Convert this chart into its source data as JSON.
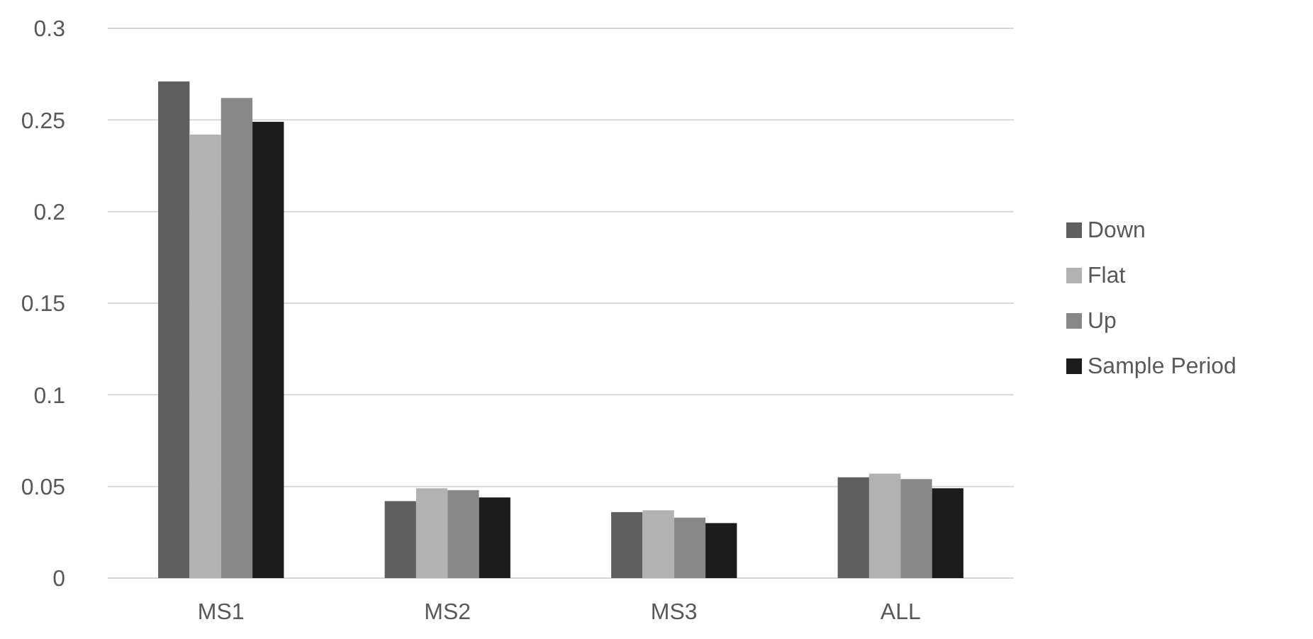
{
  "chart_data": {
    "type": "bar",
    "categories": [
      "MS1",
      "MS2",
      "MS3",
      "ALL"
    ],
    "series": [
      {
        "name": "Down",
        "color": "#5f5f5f",
        "values": [
          0.271,
          0.042,
          0.036,
          0.055
        ]
      },
      {
        "name": "Flat",
        "color": "#b2b2b2",
        "values": [
          0.242,
          0.049,
          0.037,
          0.057
        ]
      },
      {
        "name": "Up",
        "color": "#888888",
        "values": [
          0.262,
          0.048,
          0.033,
          0.054
        ]
      },
      {
        "name": "Sample Period",
        "color": "#1c1c1c",
        "values": [
          0.249,
          0.044,
          0.03,
          0.049
        ]
      }
    ],
    "ylim": [
      0,
      0.3
    ],
    "yticks": [
      0,
      0.05,
      0.1,
      0.15,
      0.2,
      0.25,
      0.3
    ],
    "grid": "y",
    "legend": "right"
  }
}
